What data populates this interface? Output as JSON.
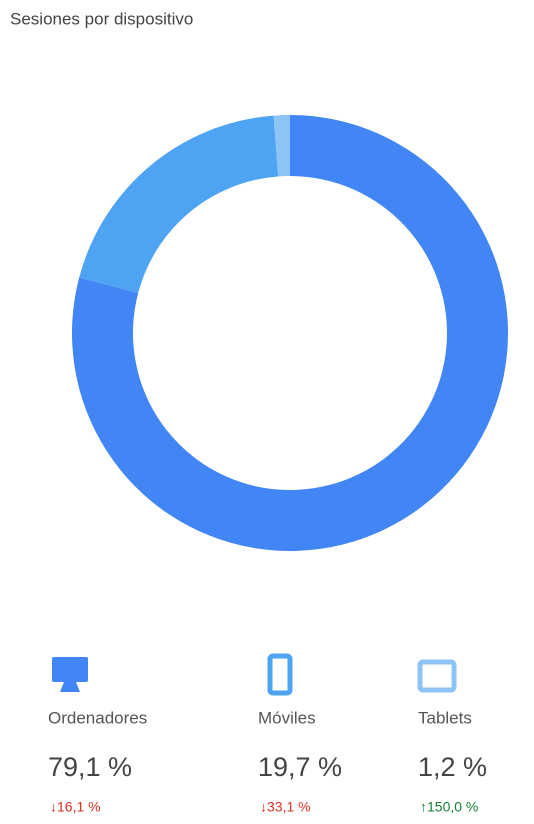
{
  "chart_data": {
    "type": "donut",
    "title": "Sesiones por dispositivo",
    "categories": [
      "Ordenadores",
      "Móviles",
      "Tablets"
    ],
    "values": [
      79.1,
      19.7,
      1.2
    ],
    "value_labels": [
      "79,1 %",
      "19,7 %",
      "1,2 %"
    ],
    "change_labels": [
      "↓16,1 %",
      "↓33,1 %",
      "↑150,0 %"
    ],
    "change_colors": [
      "#d93025",
      "#d93025",
      "#188038"
    ],
    "colors": [
      "#4285f4",
      "#4ea3f2",
      "#8ec3f6"
    ]
  }
}
